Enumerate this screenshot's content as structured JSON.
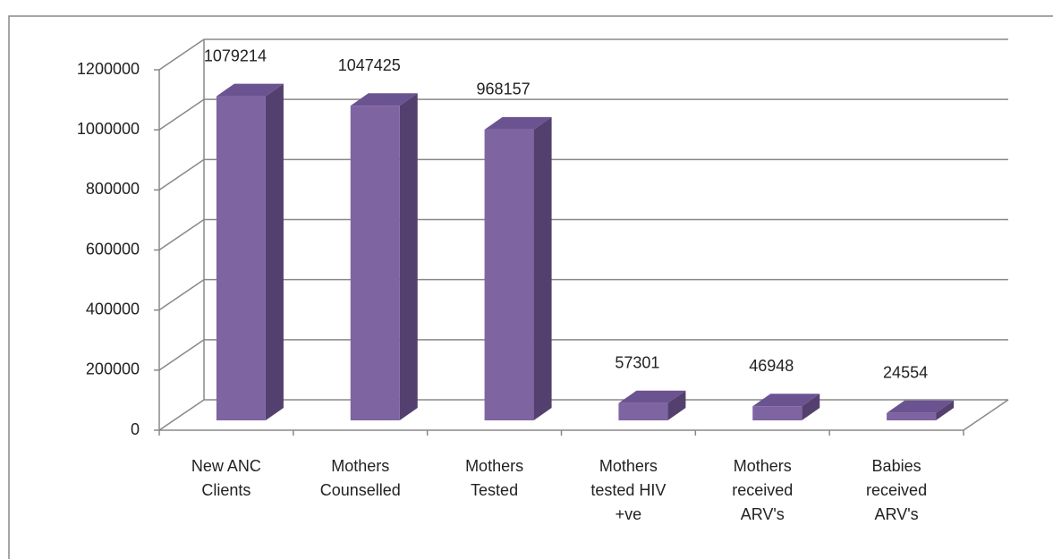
{
  "chart_data": {
    "type": "bar3d",
    "categories": [
      "New ANC\nClients",
      "Mothers\nCounselled",
      "Mothers\nTested",
      "Mothers\ntested HIV\n+ve",
      "Mothers\nreceived\nARV's",
      "Babies\nreceived\nARV's"
    ],
    "values": [
      1079214,
      1047425,
      968157,
      57301,
      46948,
      24554
    ],
    "color": "#7f64a2",
    "side_color": "#54406e",
    "top_color": "#6b5391",
    "ylim": [
      0,
      1200000
    ],
    "yticks": [
      0,
      200000,
      400000,
      600000,
      800000,
      1000000,
      1200000
    ],
    "grid": true
  }
}
